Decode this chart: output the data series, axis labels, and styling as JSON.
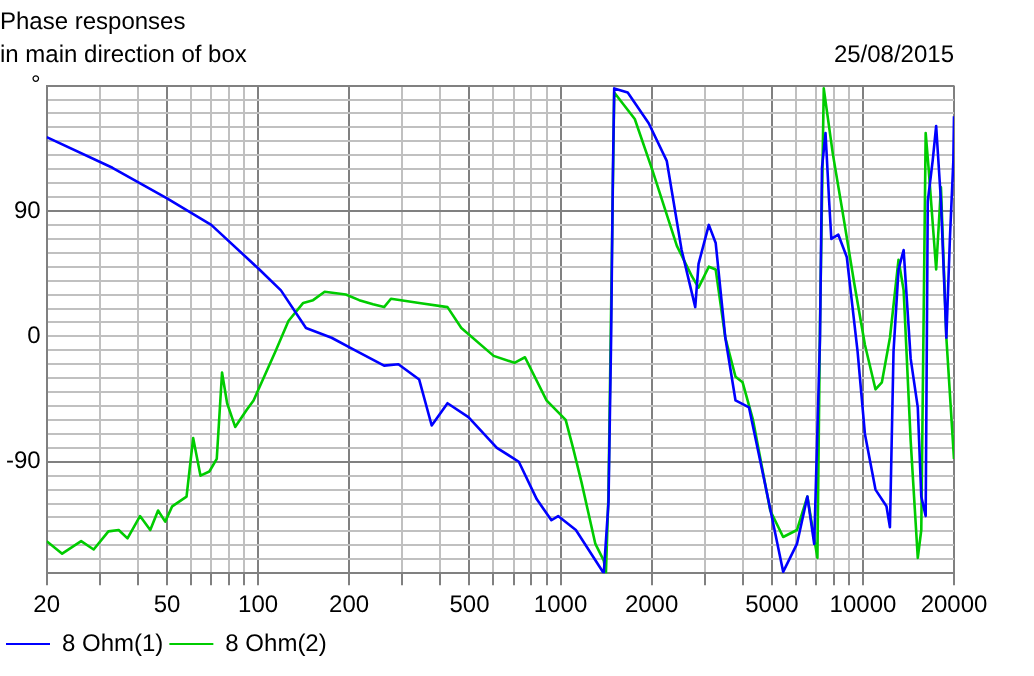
{
  "chart_data": {
    "type": "line",
    "title": "Phase responses",
    "subtitle": "in main direction of box",
    "annotations": [
      "25/08/2015"
    ],
    "log": "x",
    "grid": true,
    "legend": "bottom",
    "marker": "none",
    "line_style": "solid",
    "xlim": [
      20,
      20000
    ],
    "ylim": [
      -170,
      180
    ],
    "xticks": [
      20,
      {
        "value": 30,
        "label": null
      },
      {
        "value": 40,
        "label": null
      },
      50,
      {
        "value": 60,
        "label": null
      },
      {
        "value": 70,
        "label": null
      },
      {
        "value": 80,
        "label": null
      },
      {
        "value": 90,
        "label": null
      },
      100,
      200,
      {
        "value": 300,
        "label": null
      },
      {
        "value": 400,
        "label": null
      },
      500,
      {
        "value": 600,
        "label": null
      },
      {
        "value": 700,
        "label": null
      },
      {
        "value": 800,
        "label": null
      },
      {
        "value": 900,
        "label": null
      },
      1000,
      2000,
      {
        "value": 3000,
        "label": null
      },
      {
        "value": 4000,
        "label": null
      },
      5000,
      {
        "value": 6000,
        "label": null
      },
      {
        "value": 7000,
        "label": null
      },
      {
        "value": 8000,
        "label": null
      },
      {
        "value": 9000,
        "label": null
      },
      10000,
      20000
    ],
    "yticks": [
      {
        "value": 180,
        "label": "°"
      },
      {
        "value": 170,
        "label": null
      },
      {
        "value": 160,
        "label": null
      },
      {
        "value": 150,
        "label": null
      },
      {
        "value": 140,
        "label": null
      },
      {
        "value": 130,
        "label": null
      },
      {
        "value": 120,
        "label": null
      },
      {
        "value": 110,
        "label": null
      },
      {
        "value": 100,
        "label": null
      },
      90,
      {
        "value": 80,
        "label": null
      },
      {
        "value": 70,
        "label": null
      },
      {
        "value": 60,
        "label": null
      },
      {
        "value": 50,
        "label": null
      },
      {
        "value": 40,
        "label": null
      },
      {
        "value": 30,
        "label": null
      },
      {
        "value": 20,
        "label": null
      },
      {
        "value": 10,
        "label": null
      },
      0,
      {
        "value": -10,
        "label": null
      },
      {
        "value": -20,
        "label": null
      },
      {
        "value": -30,
        "label": null
      },
      {
        "value": -40,
        "label": null
      },
      {
        "value": -50,
        "label": null
      },
      {
        "value": -60,
        "label": null
      },
      {
        "value": -70,
        "label": null
      },
      {
        "value": -80,
        "label": null
      },
      -90,
      {
        "value": -100,
        "label": null
      },
      {
        "value": -110,
        "label": null
      },
      {
        "value": -120,
        "label": null
      },
      {
        "value": -130,
        "label": null
      },
      {
        "value": -140,
        "label": null
      },
      {
        "value": -150,
        "label": null
      },
      {
        "value": -160,
        "label": null
      },
      {
        "value": -170,
        "label": null
      }
    ],
    "series": [
      {
        "name": "8 Ohm(1)",
        "color": "#0000ff",
        "x": [
          20,
          33,
          50,
          70,
          101,
          119,
          144,
          175,
          205,
          261,
          291,
          341,
          375,
          423,
          496,
          616,
          728,
          835,
          933,
          982,
          1124,
          1390,
          1441,
          1470,
          1490,
          1505,
          1668,
          1957,
          2245,
          2514,
          2789,
          2860,
          3093,
          3259,
          3507,
          3790,
          4200,
          4788,
          5447,
          6050,
          6550,
          6900,
          7210,
          7320,
          7520,
          7730,
          7860,
          8290,
          8840,
          9600,
          10150,
          11000,
          11960,
          12280,
          12620,
          13110,
          13630,
          14380,
          15180,
          15590,
          16120,
          16380,
          17000,
          17460,
          18110,
          18870,
          19400,
          19900,
          20000
        ],
        "values": [
          143,
          121,
          99,
          80,
          48,
          33,
          6,
          -1,
          -9,
          -21,
          -20,
          -31,
          -64,
          -48,
          -58,
          -80,
          -90,
          -117,
          -132,
          -129,
          -139,
          -170,
          -119,
          -1,
          117,
          178,
          175,
          153,
          126,
          62,
          21,
          52,
          80,
          67,
          -1,
          -46,
          -51,
          -110,
          -169,
          -149,
          -115,
          -149,
          -1,
          121,
          146,
          97,
          70,
          73,
          57,
          -11,
          -70,
          -110,
          -122,
          -137,
          -11,
          48,
          62,
          -16,
          -51,
          -115,
          -129,
          97,
          126,
          151,
          97,
          -1,
          72,
          126,
          158
        ]
      },
      {
        "name": "8 Ohm(2)",
        "color": "#00cc00",
        "x": [
          20,
          22.5,
          26,
          28.6,
          32,
          34.6,
          37,
          40.7,
          44,
          46.7,
          49.3,
          52,
          58,
          61,
          64.5,
          69,
          73,
          76,
          79,
          84,
          91.5,
          96.6,
          114,
          126,
          141,
          152,
          166,
          195,
          216,
          240,
          261,
          275,
          341,
          423,
          470,
          601,
          704,
          763,
          899,
          1040,
          1100,
          1174,
          1304,
          1390,
          1413,
          1440,
          1505,
          1760,
          2015,
          2425,
          2721,
          2860,
          3093,
          3259,
          3507,
          3790,
          4000,
          4330,
          4936,
          5447,
          6050,
          6337,
          6550,
          7070,
          7210,
          7420,
          7950,
          8600,
          9360,
          10150,
          11000,
          11550,
          12280,
          13110,
          13630,
          14380,
          15180,
          15590,
          16120,
          16480,
          17460,
          18110,
          18870,
          20000
        ],
        "values": [
          -147,
          -156,
          -147,
          -153,
          -140,
          -139,
          -145,
          -129,
          -139,
          -125,
          -133,
          -122,
          -115,
          -73,
          -100,
          -97,
          -88,
          -26,
          -48,
          -65,
          -53,
          -46,
          -11,
          11,
          24,
          26,
          32,
          30,
          26,
          23,
          21,
          27,
          24,
          21,
          6,
          -14,
          -19,
          -15,
          -46,
          -60,
          -80,
          -105,
          -149,
          -161,
          -170,
          -115,
          175,
          156,
          119,
          65,
          43,
          35,
          50,
          48,
          -1,
          -29,
          -33,
          -60,
          -125,
          -144,
          -139,
          -125,
          -115,
          -159,
          8,
          178,
          131,
          87,
          38,
          -6,
          -38,
          -33,
          -1,
          55,
          33,
          -75,
          -159,
          -139,
          146,
          121,
          48,
          107,
          -1,
          -88
        ]
      }
    ]
  }
}
